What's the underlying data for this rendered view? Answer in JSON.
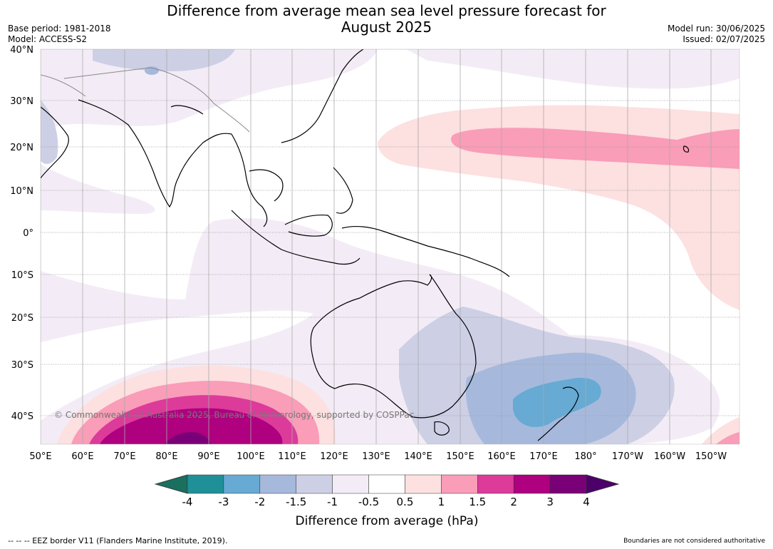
{
  "title_line1": "Difference from average mean sea level pressure forecast for",
  "title_line2": "August 2025",
  "meta_left": {
    "base_period": "Base period: 1981-2018",
    "model": "Model: ACCESS-S2"
  },
  "meta_right": {
    "model_run": "Model run: 30/06/2025",
    "issued": "Issued: 02/07/2025"
  },
  "lat_labels": [
    "40°N",
    "30°N",
    "20°N",
    "10°N",
    "0°",
    "10°S",
    "20°S",
    "30°S",
    "40°S"
  ],
  "lon_labels": [
    "50°E",
    "60°E",
    "70°E",
    "80°E",
    "90°E",
    "100°E",
    "110°E",
    "120°E",
    "130°E",
    "140°E",
    "150°E",
    "160°E",
    "170°E",
    "180°",
    "170°W",
    "160°W",
    "150°W"
  ],
  "copyright": "© Commonwealth of Australia 2025, Bureau of Meteorology, supported by COSPPac",
  "colorbar": {
    "ticks": [
      "-4",
      "-3",
      "-2",
      "-1.5",
      "-1",
      "-0.5",
      "0.5",
      "1",
      "1.5",
      "2",
      "3",
      "4"
    ],
    "colors": [
      "#1a6f5e",
      "#1f9097",
      "#67aad3",
      "#a6b9dc",
      "#cdcfe5",
      "#f3ecf6",
      "#ffffff",
      "#fde0e0",
      "#f99db8",
      "#dc3b9a",
      "#ae007f",
      "#7a0077",
      "#4c006a"
    ],
    "label": "Difference from average (hPa)"
  },
  "footer_left": "--  --  -- EEZ border V11 (Flanders Marine Institute, 2019).",
  "footer_right": "Boundaries are not considered authoritative"
}
